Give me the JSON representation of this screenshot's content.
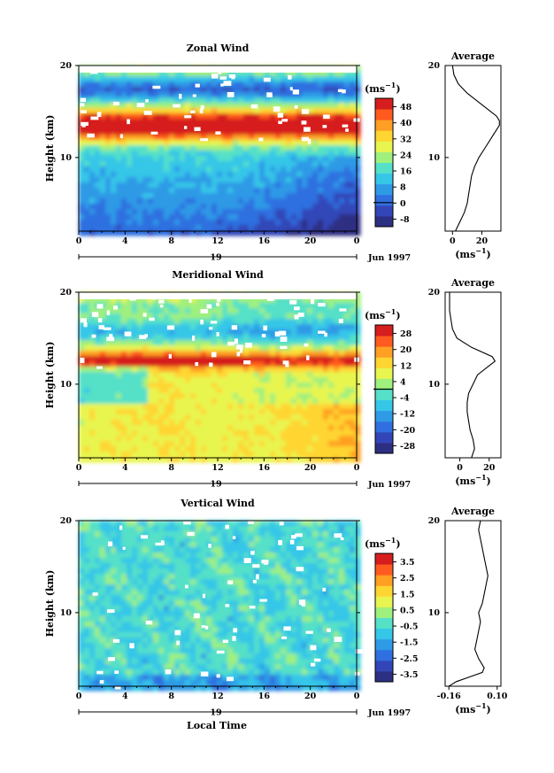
{
  "colors": {
    "scale": [
      "#2d2f82",
      "#3346b8",
      "#2f6fe0",
      "#2f9ae6",
      "#36c6e8",
      "#55e0c8",
      "#9ff07d",
      "#e8f550",
      "#ffd531",
      "#ff9f24",
      "#ff5a1f",
      "#d61e1e"
    ]
  },
  "xaxis": {
    "ticks": [
      "0",
      "4",
      "8",
      "12",
      "16",
      "20",
      "0"
    ],
    "day": "19",
    "date_label": "Jun 1997",
    "label": "Local Time"
  },
  "chart_data": [
    {
      "type": "heatmap",
      "title": "Zonal Wind",
      "ylabel": "Height (km)",
      "yticks": [
        "20",
        "10"
      ],
      "ylim": [
        2,
        20
      ],
      "xlim": [
        0,
        24
      ],
      "colorbar": {
        "unit_base": "(ms",
        "unit_exp": "−1",
        "unit_close": ")",
        "labels": [
          "48",
          "40",
          "32",
          "24",
          "16",
          "8",
          "0",
          "-8"
        ],
        "range": [
          -8,
          52
        ]
      },
      "profile": {
        "title": "Average",
        "yticks": [
          "20",
          "10"
        ],
        "xticks": [
          "0",
          "20"
        ],
        "xlim": [
          -5,
          33
        ],
        "xlabel_base": "(ms",
        "xlabel_exp": "−1",
        "xlabel_close": ")",
        "heights": [
          2,
          3,
          4,
          5,
          6,
          7,
          8,
          9,
          10,
          11,
          12,
          13,
          13.5,
          14,
          14.5,
          15,
          16,
          17,
          18,
          19,
          20
        ],
        "values": [
          2,
          5,
          8,
          10,
          11,
          12,
          13,
          15,
          18,
          22,
          26,
          30,
          32,
          32,
          30,
          26,
          18,
          10,
          4,
          1,
          0
        ]
      }
    },
    {
      "type": "heatmap",
      "title": "Meridional Wind",
      "ylabel": "Height (km)",
      "yticks": [
        "20",
        "10"
      ],
      "ylim": [
        2,
        20
      ],
      "xlim": [
        0,
        24
      ],
      "colorbar": {
        "unit_base": "(ms",
        "unit_exp": "−1",
        "unit_close": ")",
        "labels": [
          "28",
          "20",
          "12",
          "4",
          "-4",
          "-12",
          "-20",
          "-28"
        ],
        "range": [
          -32,
          32
        ]
      },
      "profile": {
        "title": "Average",
        "yticks": [
          "20",
          "10"
        ],
        "xticks": [
          "0",
          "20"
        ],
        "xlim": [
          -10,
          28
        ],
        "xlabel_base": "(ms",
        "xlabel_exp": "−1",
        "xlabel_close": ")",
        "heights": [
          2,
          3,
          4,
          5,
          6,
          7,
          8,
          9,
          10,
          11,
          12,
          12.5,
          13,
          14,
          15,
          16,
          17,
          18,
          19,
          20
        ],
        "values": [
          8,
          10,
          9,
          7,
          6,
          5,
          5,
          6,
          9,
          12,
          20,
          24,
          22,
          8,
          -2,
          -5,
          -6,
          -7,
          -7,
          -7
        ]
      }
    },
    {
      "type": "heatmap",
      "title": "Vertical Wind",
      "ylabel": "Height (km)",
      "yticks": [
        "20",
        "10"
      ],
      "ylim": [
        2,
        20
      ],
      "xlim": [
        0,
        24
      ],
      "colorbar": {
        "unit_base": "(ms",
        "unit_exp": "−1",
        "unit_close": ")",
        "labels": [
          "3.5",
          "2.5",
          "1.5",
          "0.5",
          "-0.5",
          "-1.5",
          "-2.5",
          "-3.5"
        ],
        "range": [
          -4,
          4
        ]
      },
      "profile": {
        "title": "Average",
        "yticks": [
          "20",
          "10"
        ],
        "xticks": [
          "-0.16",
          "0.10"
        ],
        "xlim": [
          -0.18,
          0.12
        ],
        "xlabel_base": "(ms",
        "xlabel_exp": "−1",
        "xlabel_close": ")",
        "heights": [
          2,
          2.5,
          3,
          3.5,
          4,
          5,
          6,
          7,
          8,
          9,
          10,
          11,
          12,
          13,
          14,
          15,
          16,
          17,
          18,
          19,
          20
        ],
        "values": [
          -0.16,
          -0.12,
          -0.05,
          0.02,
          0.03,
          0.0,
          -0.02,
          -0.01,
          0.0,
          0.01,
          0.0,
          0.02,
          0.03,
          0.04,
          0.05,
          0.04,
          0.03,
          0.02,
          0.01,
          0.0,
          0.01
        ]
      }
    }
  ]
}
